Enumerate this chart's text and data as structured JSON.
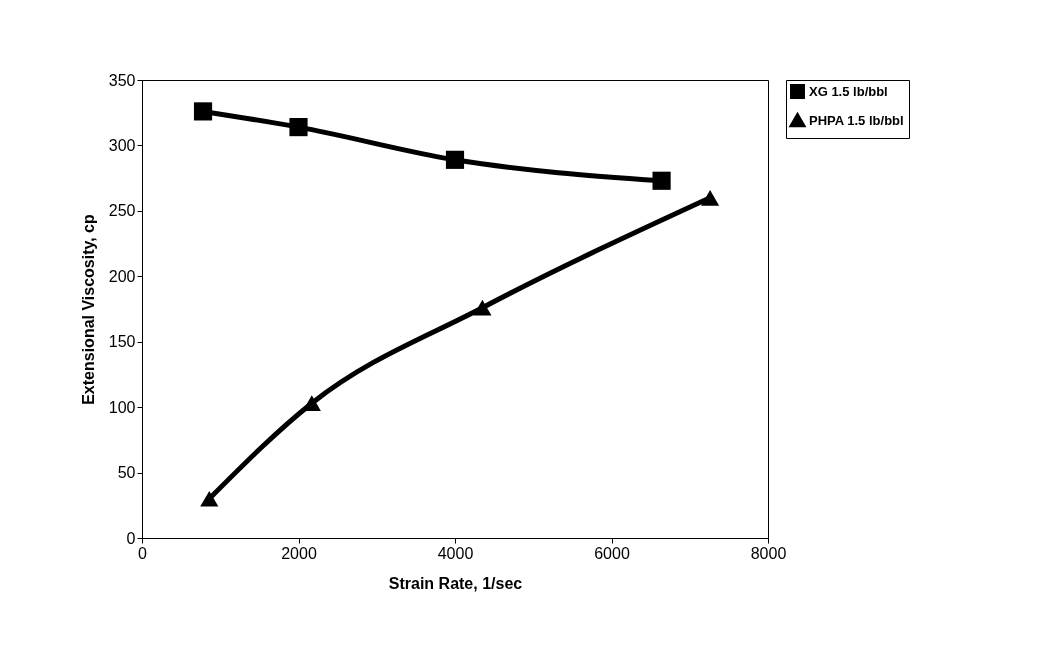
{
  "chart_data": {
    "type": "line",
    "xlabel": "Strain Rate, 1/sec",
    "ylabel": "Extensional Viscosity, cp",
    "xlim": [
      0,
      8000
    ],
    "xticks": [
      0,
      2000,
      4000,
      6000,
      8000
    ],
    "ylim": [
      0,
      350
    ],
    "yticks": [
      0,
      50,
      100,
      150,
      200,
      250,
      300,
      350
    ],
    "grid": false,
    "legend": "right",
    "series": [
      {
        "name": "XG 1.5 lb/bbl",
        "color": "#000000",
        "marker": "square",
        "x": [
          780,
          2000,
          4000,
          6640
        ],
        "values": [
          326,
          314,
          289,
          273
        ]
      },
      {
        "name": "PHPA 1.5 lb/bbl",
        "color": "#000000",
        "marker": "triangle",
        "x": [
          860,
          2170,
          4350,
          7260
        ],
        "values": [
          30,
          103,
          176,
          260
        ]
      }
    ]
  }
}
